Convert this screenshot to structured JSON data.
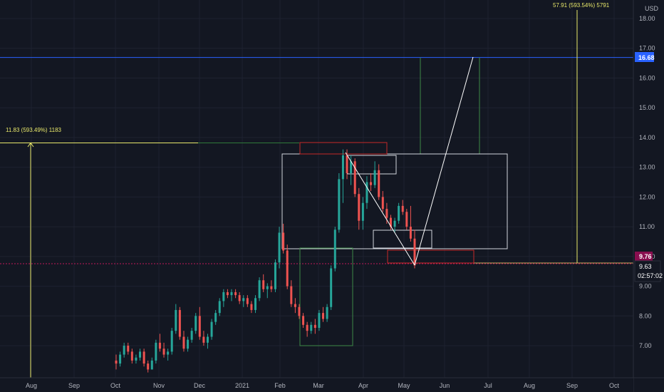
{
  "chart_data": {
    "type": "candlestick",
    "currency_label": "USD",
    "y_ticks": [
      "18.00",
      "17.00",
      "16.00",
      "15.00",
      "14.00",
      "13.00",
      "12.00",
      "11.00",
      "10.00",
      "9.00",
      "8.00",
      "7.00"
    ],
    "y_tick_values": [
      18,
      17,
      16,
      15,
      14,
      13,
      12,
      11,
      10,
      9,
      8,
      7
    ],
    "ylim": [
      6.2,
      18.6
    ],
    "x_ticks": [
      "Aug",
      "Sep",
      "Oct",
      "Nov",
      "Dec",
      "2021",
      "Feb",
      "Mar",
      "Apr",
      "May",
      "Jun",
      "Jul",
      "Aug",
      "Sep",
      "Oct"
    ],
    "price_tags": {
      "resistance": {
        "value": 16.68,
        "label": "16.68",
        "color": "#2962ff"
      },
      "high_marker": {
        "value": 9.76,
        "label": "9.76",
        "color": "#880e4f"
      },
      "last_price": {
        "value": 9.63,
        "label": "9.63",
        "color": "#131722"
      },
      "countdown": "02:57:02"
    },
    "annotations": {
      "left_measure": "11.83 (593.49%) 1183",
      "right_measure": "57.91 (593.54%) 5791"
    },
    "candles": [
      {
        "o": 6.5,
        "h": 6.7,
        "l": 6.2,
        "c": 6.4
      },
      {
        "o": 6.4,
        "h": 6.8,
        "l": 6.3,
        "c": 6.7
      },
      {
        "o": 6.7,
        "h": 7.1,
        "l": 6.6,
        "c": 7.0
      },
      {
        "o": 7.0,
        "h": 7.1,
        "l": 6.7,
        "c": 6.8
      },
      {
        "o": 6.8,
        "h": 6.9,
        "l": 6.4,
        "c": 6.5
      },
      {
        "o": 6.5,
        "h": 6.7,
        "l": 6.4,
        "c": 6.6
      },
      {
        "o": 6.6,
        "h": 6.9,
        "l": 6.5,
        "c": 6.8
      },
      {
        "o": 6.8,
        "h": 6.9,
        "l": 6.3,
        "c": 6.4
      },
      {
        "o": 6.4,
        "h": 6.5,
        "l": 6.1,
        "c": 6.2
      },
      {
        "o": 6.2,
        "h": 6.6,
        "l": 6.2,
        "c": 6.5
      },
      {
        "o": 6.5,
        "h": 7.2,
        "l": 6.4,
        "c": 7.1
      },
      {
        "o": 7.1,
        "h": 7.4,
        "l": 6.8,
        "c": 6.9
      },
      {
        "o": 6.9,
        "h": 7.1,
        "l": 6.6,
        "c": 6.7
      },
      {
        "o": 6.7,
        "h": 6.9,
        "l": 6.5,
        "c": 6.8
      },
      {
        "o": 6.8,
        "h": 7.6,
        "l": 6.7,
        "c": 7.5
      },
      {
        "o": 7.5,
        "h": 8.4,
        "l": 7.4,
        "c": 8.2
      },
      {
        "o": 8.2,
        "h": 8.3,
        "l": 7.2,
        "c": 7.3
      },
      {
        "o": 7.3,
        "h": 7.5,
        "l": 6.8,
        "c": 6.9
      },
      {
        "o": 6.9,
        "h": 7.3,
        "l": 6.8,
        "c": 7.2
      },
      {
        "o": 7.2,
        "h": 7.6,
        "l": 7.1,
        "c": 7.5
      },
      {
        "o": 7.5,
        "h": 8.1,
        "l": 7.4,
        "c": 8.0
      },
      {
        "o": 8.0,
        "h": 8.3,
        "l": 7.2,
        "c": 7.3
      },
      {
        "o": 7.3,
        "h": 7.5,
        "l": 7.0,
        "c": 7.1
      },
      {
        "o": 7.1,
        "h": 7.4,
        "l": 6.9,
        "c": 7.3
      },
      {
        "o": 7.3,
        "h": 7.9,
        "l": 7.2,
        "c": 7.8
      },
      {
        "o": 7.8,
        "h": 8.2,
        "l": 7.7,
        "c": 8.1
      },
      {
        "o": 8.1,
        "h": 8.6,
        "l": 8.0,
        "c": 8.5
      },
      {
        "o": 8.5,
        "h": 8.9,
        "l": 8.3,
        "c": 8.8
      },
      {
        "o": 8.8,
        "h": 8.9,
        "l": 8.6,
        "c": 8.7
      },
      {
        "o": 8.7,
        "h": 8.9,
        "l": 8.5,
        "c": 8.8
      },
      {
        "o": 8.8,
        "h": 8.9,
        "l": 8.6,
        "c": 8.7
      },
      {
        "o": 8.7,
        "h": 8.8,
        "l": 8.4,
        "c": 8.5
      },
      {
        "o": 8.5,
        "h": 8.7,
        "l": 8.3,
        "c": 8.6
      },
      {
        "o": 8.6,
        "h": 8.7,
        "l": 8.3,
        "c": 8.4
      },
      {
        "o": 8.4,
        "h": 8.5,
        "l": 8.1,
        "c": 8.2
      },
      {
        "o": 8.2,
        "h": 8.7,
        "l": 8.1,
        "c": 8.6
      },
      {
        "o": 8.6,
        "h": 9.3,
        "l": 8.5,
        "c": 9.2
      },
      {
        "o": 9.2,
        "h": 9.4,
        "l": 8.8,
        "c": 8.9
      },
      {
        "o": 8.9,
        "h": 9.1,
        "l": 8.6,
        "c": 9.0
      },
      {
        "o": 9.0,
        "h": 9.2,
        "l": 8.8,
        "c": 8.9
      },
      {
        "o": 8.9,
        "h": 9.9,
        "l": 8.8,
        "c": 9.8
      },
      {
        "o": 9.8,
        "h": 11.0,
        "l": 9.6,
        "c": 10.8
      },
      {
        "o": 10.8,
        "h": 11.1,
        "l": 10.1,
        "c": 10.2
      },
      {
        "o": 10.2,
        "h": 10.4,
        "l": 8.9,
        "c": 9.0
      },
      {
        "o": 9.0,
        "h": 9.2,
        "l": 8.3,
        "c": 8.4
      },
      {
        "o": 8.4,
        "h": 8.6,
        "l": 8.1,
        "c": 8.3
      },
      {
        "o": 8.3,
        "h": 8.4,
        "l": 7.9,
        "c": 8.0
      },
      {
        "o": 8.0,
        "h": 8.1,
        "l": 7.6,
        "c": 7.7
      },
      {
        "o": 7.7,
        "h": 7.8,
        "l": 7.3,
        "c": 7.5
      },
      {
        "o": 7.5,
        "h": 7.8,
        "l": 7.4,
        "c": 7.7
      },
      {
        "o": 7.7,
        "h": 7.9,
        "l": 7.4,
        "c": 7.6
      },
      {
        "o": 7.6,
        "h": 8.2,
        "l": 7.5,
        "c": 8.1
      },
      {
        "o": 8.1,
        "h": 8.3,
        "l": 7.8,
        "c": 7.9
      },
      {
        "o": 7.9,
        "h": 8.4,
        "l": 7.8,
        "c": 8.3
      },
      {
        "o": 8.3,
        "h": 9.7,
        "l": 8.2,
        "c": 9.6
      },
      {
        "o": 9.6,
        "h": 11.0,
        "l": 9.5,
        "c": 10.9
      },
      {
        "o": 10.9,
        "h": 12.8,
        "l": 10.8,
        "c": 12.6
      },
      {
        "o": 12.6,
        "h": 13.6,
        "l": 11.8,
        "c": 13.4
      },
      {
        "o": 13.4,
        "h": 13.6,
        "l": 12.6,
        "c": 12.8
      },
      {
        "o": 12.8,
        "h": 13.4,
        "l": 12.4,
        "c": 13.2
      },
      {
        "o": 13.2,
        "h": 13.3,
        "l": 12.0,
        "c": 12.1
      },
      {
        "o": 12.1,
        "h": 12.3,
        "l": 10.9,
        "c": 11.2
      },
      {
        "o": 11.2,
        "h": 12.0,
        "l": 10.9,
        "c": 11.8
      },
      {
        "o": 11.8,
        "h": 12.7,
        "l": 11.6,
        "c": 12.5
      },
      {
        "o": 12.5,
        "h": 12.8,
        "l": 12.2,
        "c": 12.4
      },
      {
        "o": 12.4,
        "h": 13.2,
        "l": 12.3,
        "c": 12.9
      },
      {
        "o": 12.9,
        "h": 13.1,
        "l": 11.9,
        "c": 12.0
      },
      {
        "o": 12.0,
        "h": 12.2,
        "l": 11.5,
        "c": 11.6
      },
      {
        "o": 11.6,
        "h": 11.8,
        "l": 11.1,
        "c": 11.3
      },
      {
        "o": 11.3,
        "h": 11.4,
        "l": 10.9,
        "c": 11.0
      },
      {
        "o": 11.0,
        "h": 11.3,
        "l": 10.8,
        "c": 11.2
      },
      {
        "o": 11.2,
        "h": 11.8,
        "l": 11.1,
        "c": 11.7
      },
      {
        "o": 11.7,
        "h": 11.9,
        "l": 11.4,
        "c": 11.5
      },
      {
        "o": 11.5,
        "h": 11.6,
        "l": 10.9,
        "c": 11.0
      },
      {
        "o": 11.0,
        "h": 11.7,
        "l": 10.5,
        "c": 10.6
      },
      {
        "o": 10.6,
        "h": 10.9,
        "l": 9.6,
        "c": 9.7
      }
    ]
  }
}
